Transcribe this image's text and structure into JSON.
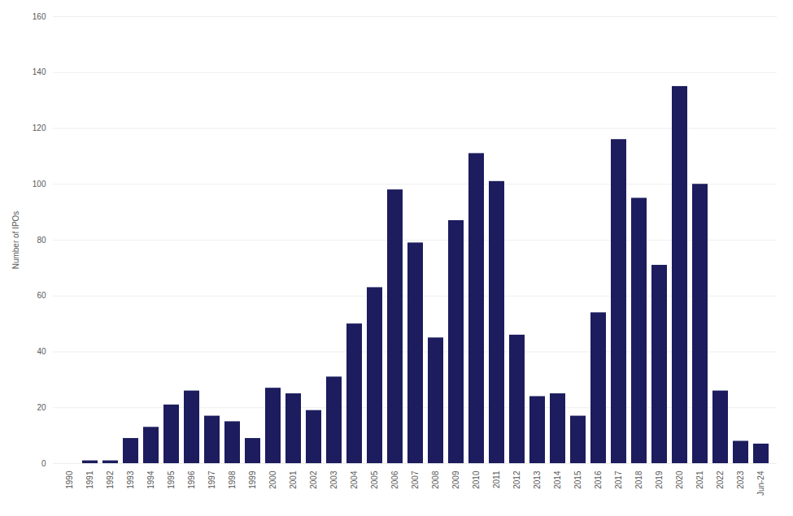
{
  "chart_data": {
    "type": "bar",
    "categories": [
      "1990",
      "1991",
      "1992",
      "1993",
      "1994",
      "1995",
      "1996",
      "1997",
      "1998",
      "1999",
      "2000",
      "2001",
      "2002",
      "2003",
      "2004",
      "2005",
      "2006",
      "2007",
      "2008",
      "2009",
      "2010",
      "2011",
      "2012",
      "2013",
      "2014",
      "2015",
      "2016",
      "2017",
      "2018",
      "2019",
      "2020",
      "2021",
      "2022",
      "2023",
      "Jun-24"
    ],
    "values": [
      0,
      1,
      1,
      9,
      13,
      21,
      26,
      17,
      15,
      9,
      27,
      25,
      19,
      31,
      50,
      63,
      98,
      79,
      45,
      87,
      111,
      101,
      46,
      24,
      25,
      17,
      54,
      116,
      95,
      71,
      135,
      100,
      26,
      8,
      7
    ],
    "color": "#1c1c5e",
    "ylabel": "Number of IPOs",
    "ylim": [
      0,
      160
    ],
    "yticks": [
      0,
      20,
      40,
      60,
      80,
      100,
      120,
      140,
      160
    ],
    "grid": true
  }
}
